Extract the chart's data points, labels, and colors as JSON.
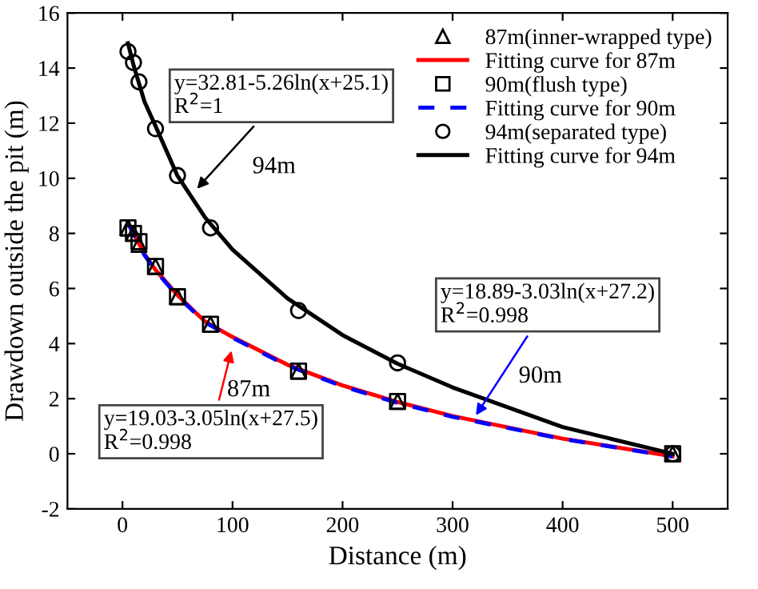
{
  "chart_data": {
    "type": "scatter",
    "xlabel": "Distance (m)",
    "ylabel": "Drawdown outside the pit (m)",
    "xlim": [
      -50,
      550
    ],
    "xticks": [
      0,
      100,
      200,
      300,
      400,
      500
    ],
    "ylim": [
      -2,
      16
    ],
    "yticks": [
      -2,
      0,
      2,
      4,
      6,
      8,
      10,
      12,
      14,
      16
    ],
    "grid": false,
    "legend": "top right",
    "series": [
      {
        "name": "87m(inner-wrapped type)",
        "marker": "triangle",
        "color": "#000000",
        "x": [
          5,
          10,
          15,
          30,
          50,
          80,
          160,
          250,
          500
        ],
        "values": [
          8.2,
          8.0,
          7.6,
          6.8,
          5.7,
          4.7,
          3.0,
          1.9,
          0.0
        ]
      },
      {
        "name": "Fitting curve for 87m",
        "type": "line",
        "marker": "none",
        "line_style": "solid",
        "color": "#ff0000",
        "x": [
          5,
          10,
          20,
          30,
          50,
          75,
          100,
          150,
          200,
          250,
          300,
          400,
          500
        ],
        "values": [
          8.41,
          8.01,
          7.25,
          6.68,
          5.76,
          4.8,
          4.24,
          3.23,
          2.48,
          1.88,
          1.37,
          0.55,
          -0.09
        ]
      },
      {
        "name": "90m(flush type)",
        "marker": "square",
        "color": "#000000",
        "x": [
          5,
          10,
          15,
          30,
          50,
          80,
          160,
          250,
          500
        ],
        "values": [
          8.2,
          8.0,
          7.7,
          6.8,
          5.7,
          4.7,
          3.0,
          1.9,
          0.0
        ]
      },
      {
        "name": "Fitting curve for 90m",
        "type": "line",
        "marker": "none",
        "line_style": "dashed",
        "color": "#0000ff",
        "x": [
          5,
          10,
          20,
          30,
          50,
          75,
          100,
          150,
          200,
          250,
          300,
          400,
          500
        ],
        "values": [
          8.37,
          7.98,
          7.21,
          6.65,
          5.72,
          4.77,
          4.21,
          3.2,
          2.45,
          1.85,
          1.34,
          0.54,
          -0.1
        ]
      },
      {
        "name": "94m(separated type)",
        "marker": "circle",
        "color": "#000000",
        "x": [
          5,
          10,
          15,
          30,
          50,
          80,
          160,
          250,
          500
        ],
        "values": [
          14.6,
          14.2,
          13.5,
          11.8,
          10.1,
          8.2,
          5.2,
          3.3,
          0.0
        ]
      },
      {
        "name": "Fitting curve for 94m",
        "type": "line",
        "marker": "none",
        "line_style": "solid",
        "color": "#000000",
        "x": [
          5,
          10,
          20,
          30,
          50,
          75,
          100,
          150,
          200,
          250,
          300,
          400,
          500
        ],
        "values": [
          14.9,
          14.11,
          12.78,
          11.9,
          10.09,
          8.58,
          7.41,
          5.64,
          4.31,
          3.27,
          2.41,
          0.97,
          0.0
        ]
      }
    ],
    "annotations": [
      {
        "text": "y=32.81-5.26ln(x+25.1)\nR$^{2}$=1",
        "x": 65,
        "y": 9.5
      },
      "94m",
      {
        "text": "y=19.03-3.05ln(x+27.5)\nR$^{2}$=0.998",
        "x": 100,
        "y": 3.9
      },
      "87m",
      {
        "text": "y=18.89-3.03ln(x+27.2)\nR$^{2}$=0.998",
        "x": 319,
        "y": 1.26
      },
      "90m"
    ]
  }
}
